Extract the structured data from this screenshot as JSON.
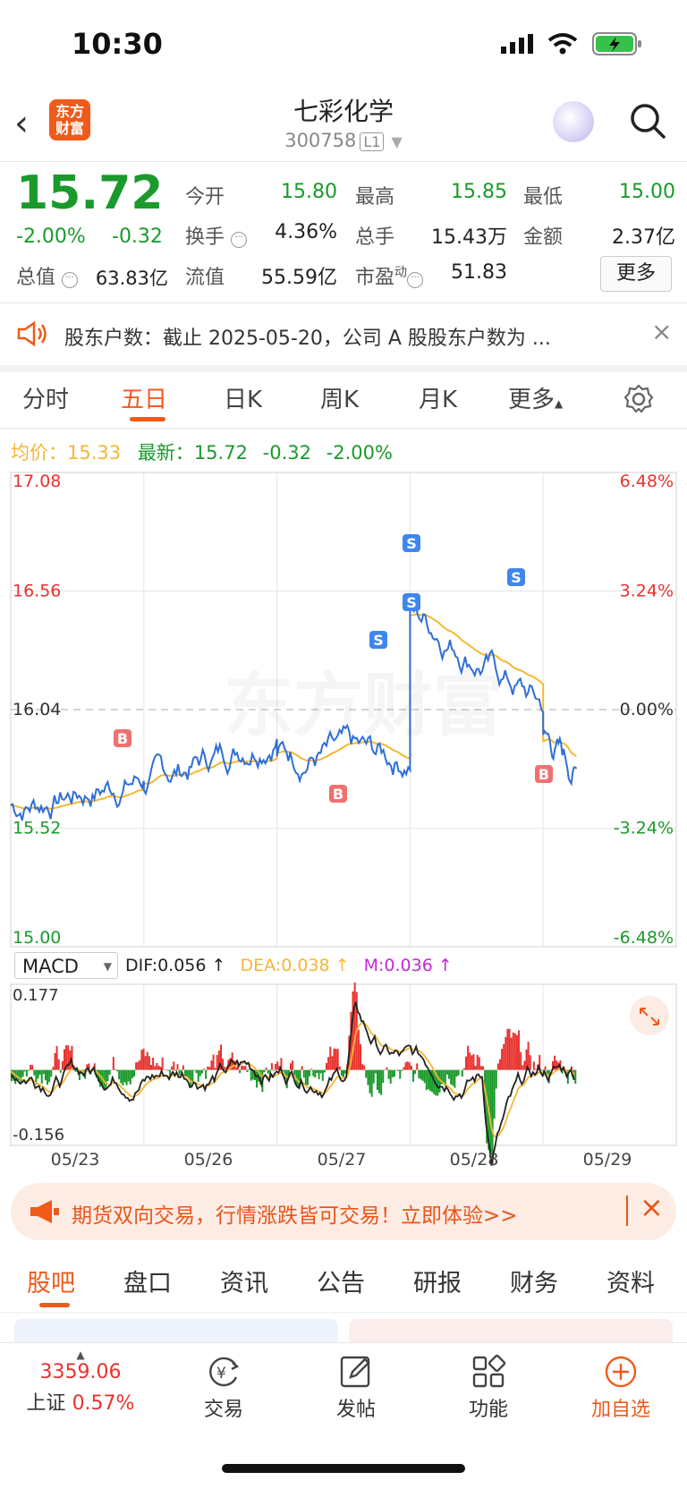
{
  "status": {
    "time": "10:30"
  },
  "header": {
    "title": "七彩化学",
    "code": "300758",
    "level": "L1",
    "logo_top": "东方",
    "logo_bottom": "财富"
  },
  "quote": {
    "price": "15.72",
    "change_pct": "-2.00%",
    "change": "-0.32",
    "open_label": "今开",
    "open": "15.80",
    "high_label": "最高",
    "high": "15.85",
    "low_label": "最低",
    "low": "15.00",
    "turnover_label": "换手",
    "turnover": "4.36%",
    "volume_label": "总手",
    "volume": "15.43万",
    "amount_label": "金额",
    "amount": "2.37亿",
    "mktcap_label": "总值",
    "mktcap": "63.83亿",
    "float_label": "流值",
    "float": "55.59亿",
    "pe_label": "市盈",
    "pe_sup": "动",
    "pe": "51.83",
    "more": "更多"
  },
  "notice": {
    "text": "股东户数：截止 2025-05-20，公司 A 股股东户数为 ..."
  },
  "tabs": [
    "分时",
    "五日",
    "日K",
    "周K",
    "月K",
    "更多"
  ],
  "avg": {
    "avg_label": "均价：",
    "avg": "15.33",
    "latest_label": "最新：",
    "latest": "15.72",
    "chg": "-0.32",
    "pct": "-2.00%"
  },
  "chart_data": [
    {
      "type": "line",
      "x": [
        "05/23",
        "05/26",
        "05/27",
        "05/28",
        "05/29"
      ],
      "ylim": [
        15.0,
        17.08
      ],
      "left_ticks": [
        "17.08",
        "16.56",
        "16.04",
        "15.52",
        "15.00"
      ],
      "right_ticks": [
        "6.48%",
        "3.24%",
        "0.00%",
        "-3.24%",
        "-6.48%"
      ],
      "series": [],
      "marker_s": "S",
      "marker_b": "B"
    },
    {
      "type": "bar",
      "indicator": "MACD",
      "dif": "DIF:0.056 ↑",
      "dea": "DEA:0.038 ↑",
      "m": "M:0.036 ↑",
      "ylim": [
        -0.156,
        0.177
      ],
      "ticks": [
        "0.177",
        "-0.156"
      ]
    }
  ],
  "banner": {
    "text": "期货双向交易，行情涨跌皆可交易！立即体验>>"
  },
  "footer_tabs": [
    "股吧",
    "盘口",
    "资讯",
    "公告",
    "研报",
    "财务",
    "资料"
  ],
  "bottom": {
    "index_value": "3359.06",
    "index_name": "上证",
    "index_pct": "0.57%",
    "trade": "交易",
    "post": "发帖",
    "func": "功能",
    "add": "加自选"
  },
  "colors": {
    "up": "#e8322e",
    "down": "#1a9a2c",
    "line": "#2f6fd6",
    "avg": "#f5b731",
    "accent": "#f05a1a"
  }
}
